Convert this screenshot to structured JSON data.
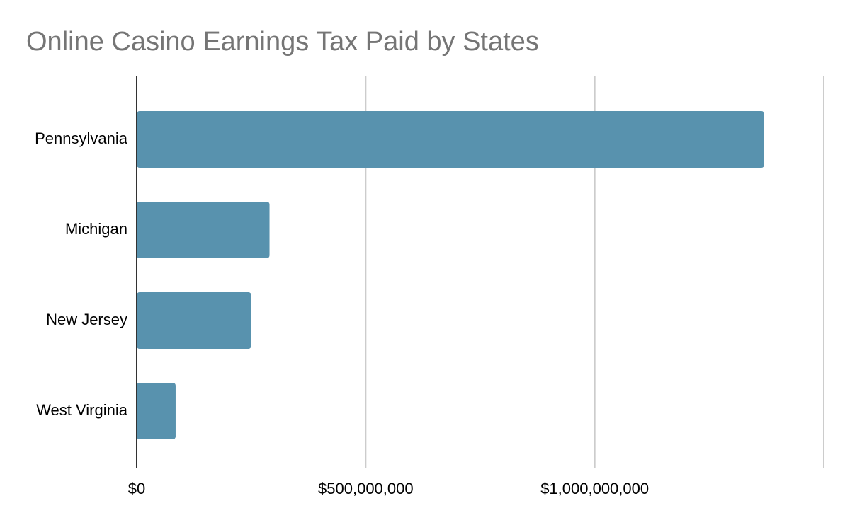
{
  "chart_data": {
    "type": "bar",
    "orientation": "horizontal",
    "title": "Online Casino Earnings Tax Paid by States",
    "xlabel": "",
    "ylabel": "",
    "categories": [
      "Pennsylvania",
      "Michigan",
      "New Jersey",
      "West Virginia"
    ],
    "values": [
      1370000000,
      290000000,
      250000000,
      85000000
    ],
    "xlim": [
      0,
      1500000000
    ],
    "x_ticks": [
      0,
      500000000,
      1000000000,
      1500000000
    ],
    "x_tick_labels": [
      "$0",
      "$500,000,000",
      "$1,000,000,000",
      ""
    ],
    "grid": true,
    "legend": "none",
    "colors": {
      "bar": "#5892ae",
      "grid": "#cccccc",
      "axis": "#333333",
      "title": "#757575",
      "text": "#000000"
    }
  }
}
